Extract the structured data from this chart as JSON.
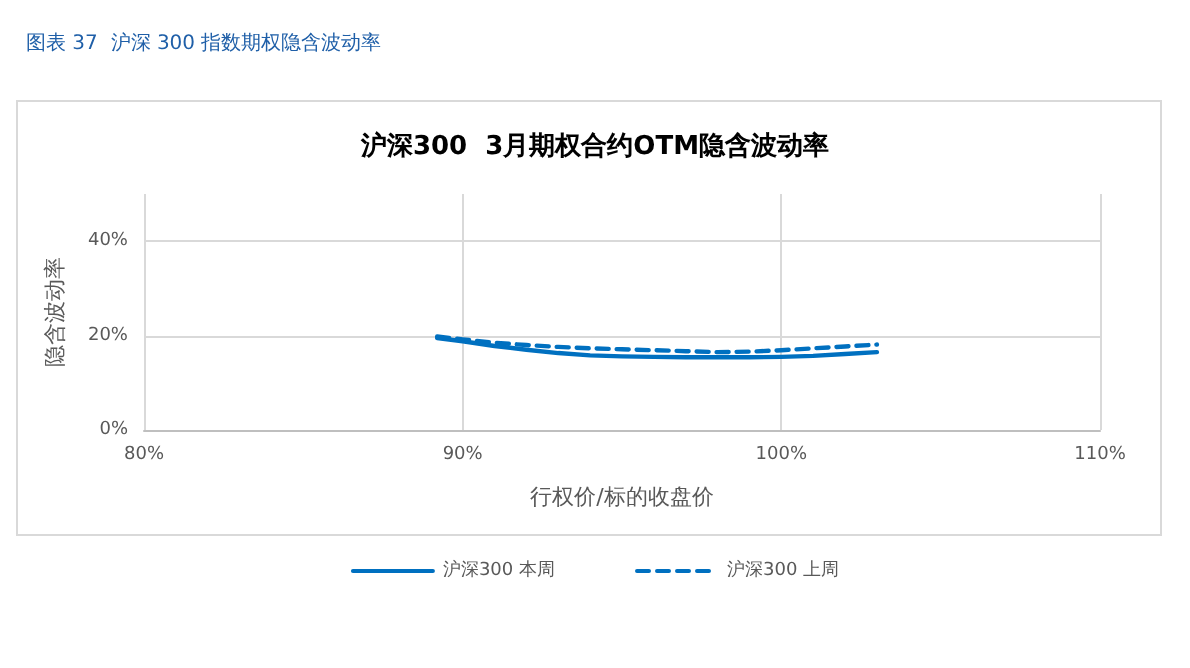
{
  "chart_data": {
    "type": "line",
    "title": "图表 37  沪深 300 指数期权隐含波动率",
    "subtitle": "沪深300  3月期权合约OTM隐含波动率",
    "xlabel": "行权价/标的收盘价",
    "ylabel": "隐含波动率",
    "series": [
      {
        "name": "沪深300 本周",
        "color": "#0070c0",
        "line_style": "solid",
        "x": [
          89.2,
          90,
          91,
          92,
          93,
          94,
          95,
          96,
          97,
          98,
          99,
          100,
          101,
          102,
          103
        ],
        "values": [
          19.5,
          18.8,
          17.8,
          17,
          16.3,
          15.8,
          15.6,
          15.5,
          15.4,
          15.4,
          15.4,
          15.5,
          15.7,
          16.1,
          16.5
        ]
      },
      {
        "name": "沪深300 上周",
        "color": "#0070c0",
        "line_style": "dashed",
        "x": [
          89.2,
          90,
          91,
          92,
          93,
          94,
          95,
          96,
          97,
          98,
          99,
          100,
          101,
          102,
          103
        ],
        "values": [
          19.8,
          19.2,
          18.5,
          18,
          17.6,
          17.3,
          17.1,
          16.9,
          16.7,
          16.5,
          16.6,
          16.9,
          17.3,
          17.7,
          18.1
        ]
      }
    ],
    "xlim": [
      80,
      110
    ],
    "xticks": [
      {
        "value": 80,
        "label": "80%"
      },
      {
        "value": 90,
        "label": "90%"
      },
      {
        "value": 100,
        "label": "100%"
      },
      {
        "value": 110,
        "label": "110%"
      }
    ],
    "ylim": [
      0,
      50
    ],
    "yticks": [
      {
        "value": 0,
        "label": "0%"
      },
      {
        "value": 20,
        "label": "20%"
      },
      {
        "value": 40,
        "label": "40%"
      }
    ],
    "grid": true,
    "legend": "bottom",
    "marker": "none"
  }
}
